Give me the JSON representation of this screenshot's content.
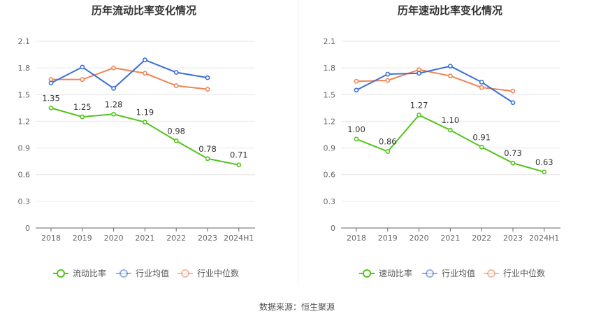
{
  "source_text": "数据来源：恒生聚源",
  "chart_data": [
    {
      "type": "line",
      "title": "历年流动比率变化情况",
      "categories": [
        "2018",
        "2019",
        "2020",
        "2021",
        "2022",
        "2023",
        "2024H1"
      ],
      "yticks": [
        "0",
        "0.3",
        "0.6",
        "0.9",
        "1.2",
        "1.5",
        "1.8",
        "2.1"
      ],
      "ylim": [
        0,
        2.1
      ],
      "grid": true,
      "legend_position": "bottom",
      "series": [
        {
          "name": "流动比率",
          "color": "#52c41a",
          "values": [
            1.35,
            1.25,
            1.28,
            1.19,
            0.98,
            0.78,
            0.71
          ],
          "labels": [
            "1.35",
            "1.25",
            "1.28",
            "1.19",
            "0.98",
            "0.78",
            "0.71"
          ]
        },
        {
          "name": "行业均值",
          "color": "#3a70d6",
          "values": [
            1.63,
            1.81,
            1.57,
            1.89,
            1.75,
            1.69,
            null
          ]
        },
        {
          "name": "行业中位数",
          "color": "#f08455",
          "values": [
            1.67,
            1.67,
            1.8,
            1.74,
            1.6,
            1.56,
            null
          ]
        }
      ]
    },
    {
      "type": "line",
      "title": "历年速动比率变化情况",
      "categories": [
        "2018",
        "2019",
        "2020",
        "2021",
        "2022",
        "2023",
        "2024H1"
      ],
      "yticks": [
        "0",
        "0.3",
        "0.6",
        "0.9",
        "1.2",
        "1.5",
        "1.8",
        "2.1"
      ],
      "ylim": [
        0,
        2.1
      ],
      "grid": true,
      "legend_position": "bottom",
      "series": [
        {
          "name": "速动比率",
          "color": "#52c41a",
          "values": [
            1.0,
            0.86,
            1.27,
            1.1,
            0.91,
            0.73,
            0.63
          ],
          "labels": [
            "1.00",
            "0.86",
            "1.27",
            "1.10",
            "0.91",
            "0.73",
            "0.63"
          ]
        },
        {
          "name": "行业均值",
          "color": "#3a70d6",
          "values": [
            1.55,
            1.73,
            1.74,
            1.82,
            1.64,
            1.41,
            null
          ]
        },
        {
          "name": "行业中位数",
          "color": "#f08455",
          "values": [
            1.65,
            1.66,
            1.78,
            1.71,
            1.58,
            1.54,
            null
          ]
        }
      ]
    }
  ]
}
